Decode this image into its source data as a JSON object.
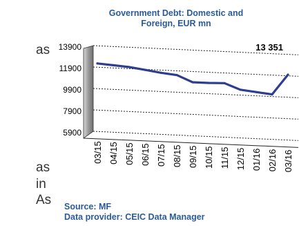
{
  "side_text": [
    "as",
    "as",
    "in",
    "As"
  ],
  "chart_data": {
    "type": "line",
    "title_line1": "Government Debt: Domestic and",
    "title_line2": "Foreign, EUR mn",
    "categories": [
      "03/15",
      "04/15",
      "05/15",
      "06/15",
      "07/15",
      "08/15",
      "09/15",
      "10/15",
      "11/15",
      "12/15",
      "01/16",
      "02/16",
      "03/16"
    ],
    "series": [
      {
        "values": [
          12250,
          12150,
          12050,
          11850,
          11650,
          11500,
          10900,
          10900,
          10950,
          10400,
          10250,
          10100,
          12000
        ]
      }
    ],
    "yticks": [
      5900,
      7900,
      9900,
      11900,
      13900
    ],
    "ylim": [
      5900,
      13900
    ],
    "grid": true,
    "line_color": "#2e3d8f",
    "callout": "13 351"
  },
  "source": {
    "line1": "Source: MF",
    "line2": "Data provider: CEIC Data Manager"
  }
}
